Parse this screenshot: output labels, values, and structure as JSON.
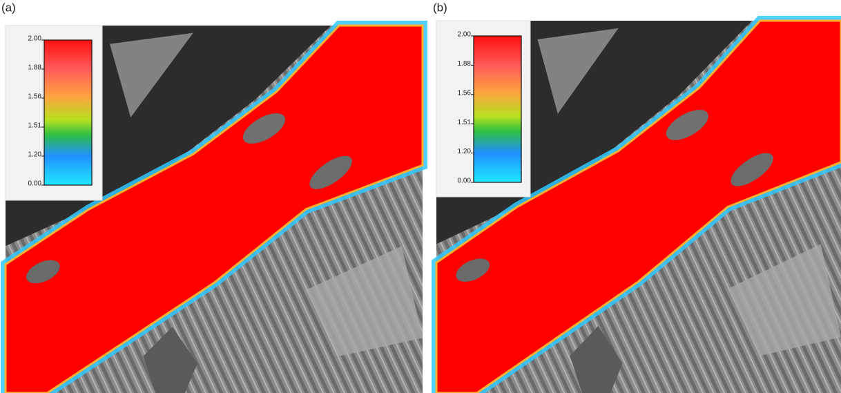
{
  "panels": [
    {
      "label": "(a)",
      "legend": {
        "ticks": [
          "2.00",
          "1.88",
          "1.56",
          "1.51",
          "1.20",
          "0.00"
        ]
      }
    },
    {
      "label": "(b)",
      "legend": {
        "ticks": [
          "2.00",
          "1.88",
          "1.56",
          "1.51",
          "1.20",
          "0.00"
        ]
      }
    }
  ]
}
